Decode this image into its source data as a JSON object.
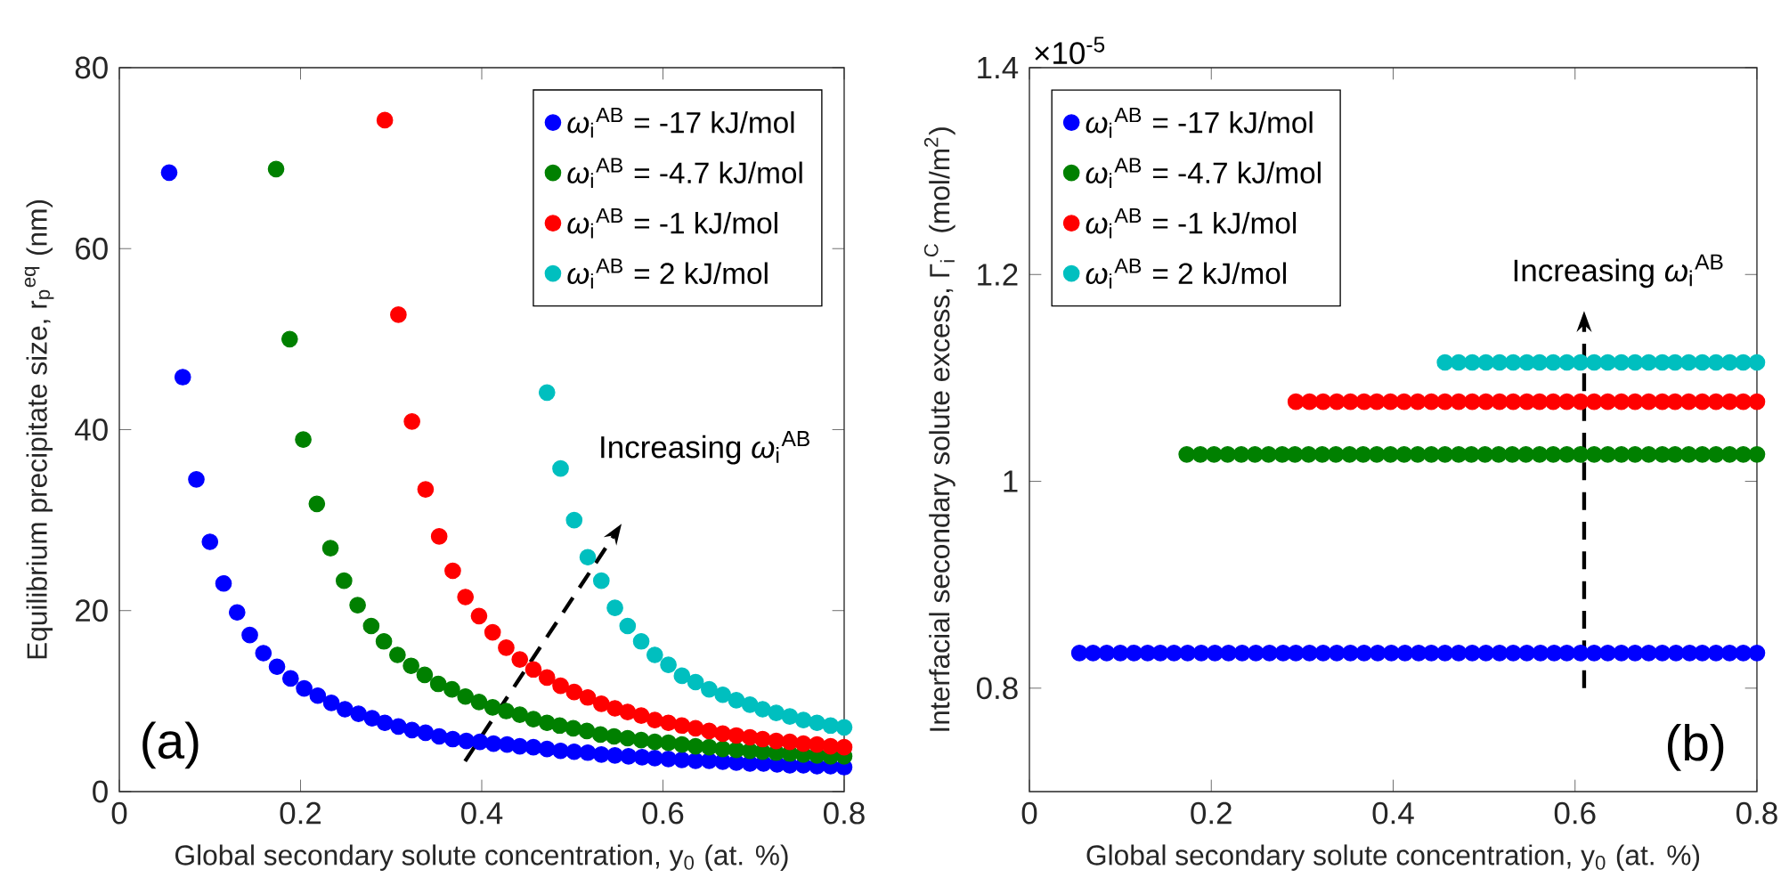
{
  "chart_data": [
    {
      "type": "scatter",
      "xlabel": "Global secondary solute concentration, y$_{0}$ (at. %)",
      "ylabel": "Equilibrium precipitate size, r$_{p}$$^{eq}$ (nm)",
      "xlim": [
        0,
        0.8
      ],
      "xticks": [
        0,
        0.2,
        0.4,
        0.6,
        0.8
      ],
      "ylim": [
        0,
        80
      ],
      "yticks": [
        0,
        20,
        40,
        60,
        80
      ],
      "legend": "top right",
      "marker": "circle",
      "annotations": [
        "(a)",
        "Increasing *ω*$_{i}$$^{AB}$"
      ],
      "series": [
        {
          "name": "*ω*$_{i}$$^{AB}$ = -17 kJ/mol",
          "color": "#0000ff",
          "x": [
            0.055,
            0.07,
            0.085,
            0.1,
            0.115,
            0.13,
            0.144,
            0.159,
            0.174,
            0.189,
            0.204,
            0.219,
            0.234,
            0.249,
            0.264,
            0.279,
            0.293,
            0.308,
            0.323,
            0.338,
            0.353,
            0.368,
            0.383,
            0.398,
            0.413,
            0.428,
            0.442,
            0.457,
            0.472,
            0.487,
            0.502,
            0.517,
            0.532,
            0.547,
            0.562,
            0.577,
            0.591,
            0.606,
            0.621,
            0.636,
            0.651,
            0.666,
            0.681,
            0.696,
            0.711,
            0.726,
            0.74,
            0.755,
            0.77,
            0.785,
            0.8
          ],
          "values": [
            68.4,
            45.8,
            34.5,
            27.6,
            23.0,
            19.8,
            17.3,
            15.3,
            13.8,
            12.5,
            11.4,
            10.6,
            9.8,
            9.1,
            8.6,
            8.1,
            7.6,
            7.2,
            6.8,
            6.5,
            6.1,
            5.8,
            5.6,
            5.5,
            5.3,
            5.2,
            5.0,
            4.9,
            4.7,
            4.5,
            4.4,
            4.3,
            4.1,
            4.0,
            3.9,
            3.8,
            3.7,
            3.6,
            3.5,
            3.4,
            3.4,
            3.3,
            3.2,
            3.1,
            3.1,
            3.0,
            2.9,
            2.9,
            2.8,
            2.8,
            2.7
          ]
        },
        {
          "name": "*ω*$_{i}$$^{AB}$ = -4.7 kJ/mol",
          "color": "#008000",
          "x": [
            0.173,
            0.188,
            0.203,
            0.218,
            0.233,
            0.248,
            0.263,
            0.278,
            0.292,
            0.307,
            0.322,
            0.337,
            0.352,
            0.367,
            0.382,
            0.397,
            0.412,
            0.427,
            0.442,
            0.457,
            0.472,
            0.486,
            0.501,
            0.516,
            0.531,
            0.546,
            0.561,
            0.576,
            0.591,
            0.606,
            0.621,
            0.636,
            0.651,
            0.666,
            0.681,
            0.696,
            0.71,
            0.725,
            0.74,
            0.755,
            0.77,
            0.785,
            0.8
          ],
          "values": [
            68.8,
            50.0,
            38.9,
            31.8,
            26.9,
            23.3,
            20.6,
            18.3,
            16.6,
            15.1,
            13.9,
            12.9,
            11.9,
            11.3,
            10.5,
            9.9,
            9.3,
            8.9,
            8.5,
            8.0,
            7.6,
            7.3,
            7.0,
            6.7,
            6.3,
            6.1,
            5.9,
            5.7,
            5.5,
            5.4,
            5.2,
            5.0,
            4.9,
            4.7,
            4.6,
            4.5,
            4.4,
            4.3,
            4.2,
            4.1,
            4.0,
            3.9,
            3.9
          ]
        },
        {
          "name": "*ω*$_{i}$$^{AB}$ = -1 kJ/mol",
          "color": "#ff0000",
          "x": [
            0.293,
            0.308,
            0.323,
            0.338,
            0.353,
            0.368,
            0.382,
            0.397,
            0.412,
            0.427,
            0.442,
            0.457,
            0.472,
            0.487,
            0.502,
            0.517,
            0.532,
            0.547,
            0.561,
            0.576,
            0.591,
            0.606,
            0.621,
            0.636,
            0.651,
            0.666,
            0.681,
            0.696,
            0.71,
            0.725,
            0.74,
            0.755,
            0.77,
            0.785,
            0.8
          ],
          "values": [
            74.2,
            52.7,
            40.9,
            33.4,
            28.2,
            24.4,
            21.5,
            19.4,
            17.6,
            15.9,
            14.6,
            13.5,
            12.6,
            11.7,
            11.0,
            10.4,
            9.7,
            9.2,
            8.8,
            8.4,
            7.9,
            7.6,
            7.3,
            7.0,
            6.7,
            6.4,
            6.2,
            6.0,
            5.8,
            5.6,
            5.5,
            5.3,
            5.2,
            5.0,
            4.9
          ]
        },
        {
          "name": "*ω*$_{i}$$^{AB}$ = 2 kJ/mol",
          "color": "#00bfbf",
          "x": [
            0.472,
            0.487,
            0.502,
            0.517,
            0.532,
            0.547,
            0.561,
            0.576,
            0.591,
            0.606,
            0.621,
            0.636,
            0.651,
            0.666,
            0.681,
            0.696,
            0.71,
            0.725,
            0.74,
            0.755,
            0.77,
            0.785,
            0.8
          ],
          "values": [
            44.1,
            35.7,
            30.0,
            25.9,
            23.3,
            20.3,
            18.3,
            16.6,
            15.1,
            14.0,
            12.8,
            12.1,
            11.3,
            10.7,
            10.1,
            9.6,
            9.1,
            8.7,
            8.3,
            7.9,
            7.6,
            7.3,
            7.1
          ]
        }
      ]
    },
    {
      "type": "scatter",
      "xlabel": "Global secondary solute concentration, y$_{0}$ (at. %)",
      "ylabel": "Interfacial secondary solute excess, Γ$_{i}$$^{C}$ (mol/m$^{2}$)",
      "xlim": [
        0,
        0.8
      ],
      "xticks": [
        0,
        0.2,
        0.4,
        0.6,
        0.8
      ],
      "ylim": [
        0.7,
        1.4
      ],
      "yticks": [
        0.8,
        1,
        1.2,
        1.4
      ],
      "legend": "top left",
      "marker": "circle",
      "annotations": [
        "×10$^{-5}$",
        "(b)",
        "Increasing *ω*$_{i}$$^{AB}$"
      ],
      "series": [
        {
          "name": "*ω*$_{i}$$^{AB}$ = -17 kJ/mol",
          "color": "#0000ff",
          "x": [
            0.055,
            0.07,
            0.085,
            0.1,
            0.115,
            0.13,
            0.144,
            0.159,
            0.174,
            0.189,
            0.204,
            0.219,
            0.234,
            0.249,
            0.264,
            0.279,
            0.293,
            0.308,
            0.323,
            0.338,
            0.353,
            0.368,
            0.383,
            0.398,
            0.413,
            0.428,
            0.442,
            0.457,
            0.472,
            0.487,
            0.502,
            0.517,
            0.532,
            0.547,
            0.562,
            0.577,
            0.591,
            0.606,
            0.621,
            0.636,
            0.651,
            0.666,
            0.681,
            0.696,
            0.711,
            0.726,
            0.74,
            0.755,
            0.77,
            0.785,
            0.8
          ],
          "values": [
            0.834,
            0.834,
            0.834,
            0.834,
            0.834,
            0.834,
            0.834,
            0.834,
            0.834,
            0.834,
            0.834,
            0.834,
            0.834,
            0.834,
            0.834,
            0.834,
            0.834,
            0.834,
            0.834,
            0.834,
            0.834,
            0.834,
            0.834,
            0.834,
            0.834,
            0.834,
            0.834,
            0.834,
            0.834,
            0.834,
            0.834,
            0.834,
            0.834,
            0.834,
            0.834,
            0.834,
            0.834,
            0.834,
            0.834,
            0.834,
            0.834,
            0.834,
            0.834,
            0.834,
            0.834,
            0.834,
            0.834,
            0.834,
            0.834,
            0.834,
            0.834
          ]
        },
        {
          "name": "*ω*$_{i}$$^{AB}$ = -4.7 kJ/mol",
          "color": "#008000",
          "x": [
            0.173,
            0.188,
            0.203,
            0.218,
            0.233,
            0.248,
            0.263,
            0.278,
            0.292,
            0.307,
            0.322,
            0.337,
            0.352,
            0.367,
            0.382,
            0.397,
            0.412,
            0.427,
            0.442,
            0.457,
            0.472,
            0.486,
            0.501,
            0.516,
            0.531,
            0.546,
            0.561,
            0.576,
            0.591,
            0.606,
            0.621,
            0.636,
            0.651,
            0.666,
            0.681,
            0.696,
            0.71,
            0.725,
            0.74,
            0.755,
            0.77,
            0.785,
            0.8
          ],
          "values": [
            1.026,
            1.026,
            1.026,
            1.026,
            1.026,
            1.026,
            1.026,
            1.026,
            1.026,
            1.026,
            1.026,
            1.026,
            1.026,
            1.026,
            1.026,
            1.026,
            1.026,
            1.026,
            1.026,
            1.026,
            1.026,
            1.026,
            1.026,
            1.026,
            1.026,
            1.026,
            1.026,
            1.026,
            1.026,
            1.026,
            1.026,
            1.026,
            1.026,
            1.026,
            1.026,
            1.026,
            1.026,
            1.026,
            1.026,
            1.026,
            1.026,
            1.026,
            1.026
          ]
        },
        {
          "name": "*ω*$_{i}$$^{AB}$ = -1 kJ/mol",
          "color": "#ff0000",
          "x": [
            0.293,
            0.308,
            0.323,
            0.338,
            0.353,
            0.368,
            0.382,
            0.397,
            0.412,
            0.427,
            0.442,
            0.457,
            0.472,
            0.487,
            0.502,
            0.517,
            0.532,
            0.547,
            0.561,
            0.576,
            0.591,
            0.606,
            0.621,
            0.636,
            0.651,
            0.666,
            0.681,
            0.696,
            0.71,
            0.725,
            0.74,
            0.755,
            0.77,
            0.785,
            0.8
          ],
          "values": [
            1.077,
            1.077,
            1.077,
            1.077,
            1.077,
            1.077,
            1.077,
            1.077,
            1.077,
            1.077,
            1.077,
            1.077,
            1.077,
            1.077,
            1.077,
            1.077,
            1.077,
            1.077,
            1.077,
            1.077,
            1.077,
            1.077,
            1.077,
            1.077,
            1.077,
            1.077,
            1.077,
            1.077,
            1.077,
            1.077,
            1.077,
            1.077,
            1.077,
            1.077,
            1.077
          ]
        },
        {
          "name": "*ω*$_{i}$$^{AB}$ = 2 kJ/mol",
          "color": "#00bfbf",
          "x": [
            0.457,
            0.472,
            0.487,
            0.502,
            0.517,
            0.532,
            0.547,
            0.561,
            0.576,
            0.591,
            0.606,
            0.621,
            0.636,
            0.651,
            0.666,
            0.681,
            0.696,
            0.71,
            0.725,
            0.74,
            0.755,
            0.77,
            0.785,
            0.8
          ],
          "values": [
            1.115,
            1.115,
            1.115,
            1.115,
            1.115,
            1.115,
            1.115,
            1.115,
            1.115,
            1.115,
            1.115,
            1.115,
            1.115,
            1.115,
            1.115,
            1.115,
            1.115,
            1.115,
            1.115,
            1.115,
            1.115,
            1.115,
            1.115,
            1.115
          ]
        }
      ]
    }
  ]
}
